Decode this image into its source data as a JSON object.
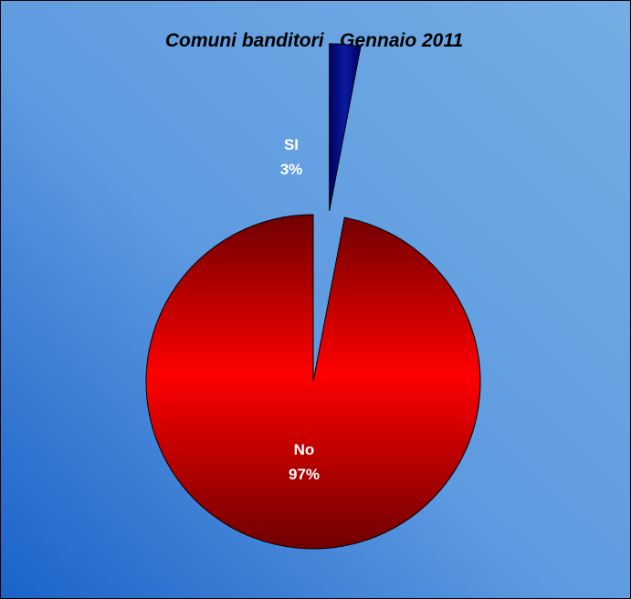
{
  "chart_data": {
    "type": "pie",
    "title": "Comuni banditori , Gennaio 2011",
    "slices": [
      {
        "name": "SI",
        "value": 3,
        "label": "3%",
        "color": "#000080",
        "exploded": true
      },
      {
        "name": "No",
        "value": 97,
        "label": "97%",
        "color": "#ff0000",
        "exploded": false
      }
    ],
    "legend": "none"
  },
  "colors": {
    "background_light": "#6ea8e0",
    "background_dark": "#1e64c8",
    "slice_no_dark": "#7a0000",
    "slice_si_dark": "#000050"
  }
}
